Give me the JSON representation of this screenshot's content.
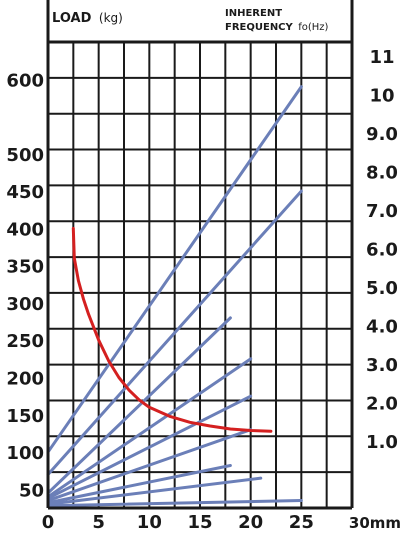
{
  "chart_data": {
    "type": "line",
    "title": "",
    "left_axis_title": {
      "main": "LOAD",
      "unit": "(kg)"
    },
    "right_axis_title": {
      "line1": "INHERENT",
      "line2": "FREQUENCY",
      "unit": "fo(Hz)"
    },
    "x_unit_label": "30mm",
    "x_ticks": [
      "0",
      "5",
      "10",
      "15",
      "20",
      "25"
    ],
    "xlim": [
      0,
      30
    ],
    "left_ticks": [
      "600",
      "500",
      "450",
      "400",
      "350",
      "300",
      "250",
      "200",
      "150",
      "100",
      "50"
    ],
    "left_ylim": [
      25,
      650
    ],
    "right_ticks": [
      "11",
      "10",
      "9.0",
      "8.0",
      "7.0",
      "6.0",
      "5.0",
      "4.0",
      "3.0",
      "2.0",
      "1.0"
    ],
    "grid": true,
    "colors": {
      "load_lines": "#6b7fb8",
      "frequency_curve": "#d42020",
      "grid": "#1a1a1a"
    },
    "series": [
      {
        "type": "load",
        "points": [
          [
            0,
            100
          ],
          [
            25,
            590
          ]
        ]
      },
      {
        "type": "load",
        "points": [
          [
            0,
            70
          ],
          [
            25,
            450
          ]
        ]
      },
      {
        "type": "load",
        "points": [
          [
            0,
            45
          ],
          [
            18,
            280
          ]
        ]
      },
      {
        "type": "load",
        "points": [
          [
            0,
            40
          ],
          [
            20,
            225
          ]
        ]
      },
      {
        "type": "load",
        "points": [
          [
            0,
            38
          ],
          [
            20,
            175
          ]
        ]
      },
      {
        "type": "load",
        "points": [
          [
            0,
            35
          ],
          [
            20,
            130
          ]
        ]
      },
      {
        "type": "load",
        "points": [
          [
            0,
            32
          ],
          [
            18,
            82
          ]
        ]
      },
      {
        "type": "load",
        "points": [
          [
            0,
            30
          ],
          [
            21,
            65
          ]
        ]
      },
      {
        "type": "load",
        "points": [
          [
            0,
            28
          ],
          [
            25,
            35
          ]
        ]
      },
      {
        "type": "frequency",
        "points": [
          [
            2.5,
            400
          ],
          [
            2.6,
            360
          ],
          [
            3,
            330
          ],
          [
            3.5,
            305
          ],
          [
            4,
            285
          ],
          [
            5,
            250
          ],
          [
            6,
            222
          ],
          [
            7,
            200
          ],
          [
            8,
            183
          ],
          [
            9,
            170
          ],
          [
            10,
            160
          ],
          [
            12,
            148
          ],
          [
            14,
            140
          ],
          [
            16,
            135
          ],
          [
            18,
            131
          ],
          [
            20,
            129
          ],
          [
            22,
            128
          ]
        ]
      }
    ]
  }
}
